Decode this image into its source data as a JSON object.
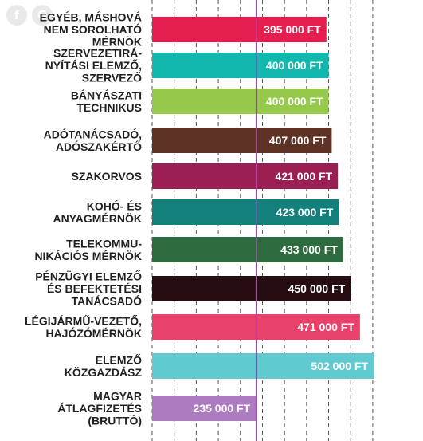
{
  "share": [
    {
      "name": "facebook-share-icon",
      "glyph": "f"
    },
    {
      "name": "google-share-icon",
      "glyph": "G"
    }
  ],
  "chart_data": {
    "type": "bar",
    "orientation": "horizontal",
    "title": "",
    "xlabel": "",
    "ylabel": "",
    "unit": "FT",
    "xlim": [
      0,
      520000
    ],
    "grid": true,
    "categories": [
      [
        "EGYÉB, MÁSHOVÁ",
        "NEM SOROLHATÓ",
        "MÉRNÖK"
      ],
      [
        "SZERVEZETIRÁ-",
        "NYÍTÁSI ELEMZŐ,",
        "SZERVEZŐ"
      ],
      [
        "BÁNYÁSZATI",
        "TECHNIKUS"
      ],
      [
        "ADÓTANÁCSADÓ,",
        "ADÓSZAKÉRTŐ"
      ],
      [
        "SZAKORVOS"
      ],
      [
        "KOHÓ- ÉS",
        "ANYAGMÉRNÖK"
      ],
      [
        "TELEKOMMU-",
        "NIKÁCIÓS MÉRNÖK"
      ],
      [
        "PÉNZÜGYI ELEMZŐ",
        "ÉS BEFEKTETÉSI",
        "TANÁCSADÓ"
      ],
      [
        "LÉGIJÁRMŰ-VEZETŐ,",
        "HAJÓZÓMÉRNÖK"
      ],
      [
        "ELEMZŐ",
        "KÖZGAZDÁSZ"
      ],
      [
        "MAGYAR",
        "ÁTLAGFIZETÉS",
        "(BRUTTÓ)"
      ]
    ],
    "values": [
      395000,
      400000,
      400000,
      407000,
      421000,
      423000,
      433000,
      450000,
      471000,
      502000,
      235000
    ],
    "value_labels": [
      "395 000 FT",
      "400 000 FT",
      "400 000 FT",
      "407 000 FT",
      "421 000 FT",
      "423 000 FT",
      "433 000 FT",
      "450 000 FT",
      "471 000 FT",
      "502 000 FT",
      "235 000 FT"
    ],
    "colors": [
      "#e41e4f",
      "#12b8ad",
      "#96c84c",
      "#5e3326",
      "#9b1f52",
      "#13807c",
      "#2e6b3e",
      "#260d12",
      "#e8416a",
      "#5fcacf",
      "#ad7cc0"
    ],
    "reference_line": {
      "value": 235000,
      "color": "#b13cc7"
    }
  }
}
